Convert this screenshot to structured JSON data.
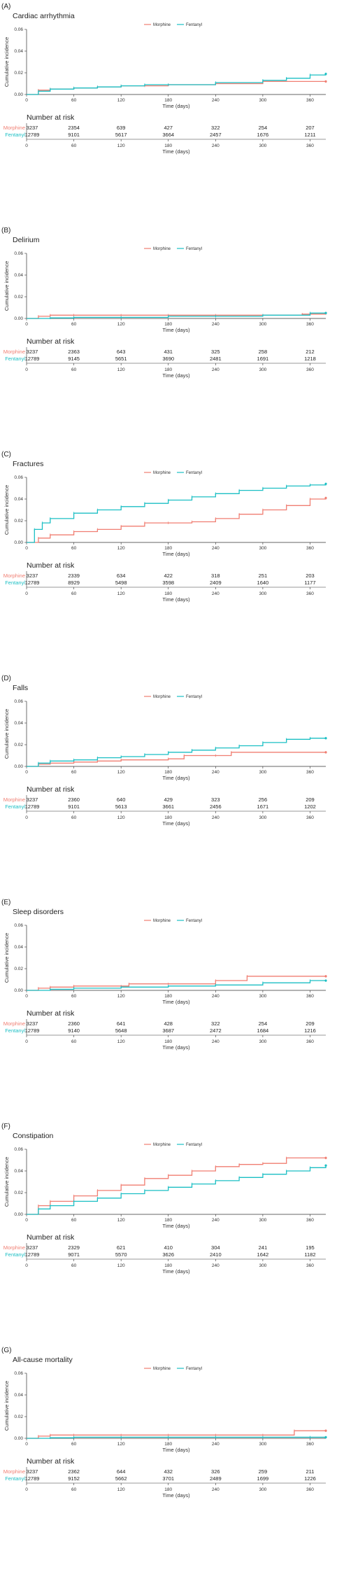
{
  "legend": {
    "morphine": "Morphine",
    "fentanyl": "Fentanyl"
  },
  "colors": {
    "morphine": "#f07e72",
    "fentanyl": "#1bbfc4"
  },
  "axis": {
    "xlabel": "Time (days)",
    "ylabel": "Cumulative incidence",
    "xticks": [
      "0",
      "60",
      "120",
      "180",
      "240",
      "300",
      "360"
    ],
    "yticks": [
      "0.00",
      "0.02",
      "0.04",
      "0.06"
    ]
  },
  "risk_table_title": "Number at risk",
  "chart_data": [
    {
      "type": "line",
      "panel_label": "(A)",
      "title": "Cardiac arrhythmia",
      "xlabel": "Time (days)",
      "ylabel": "Cumulative incidence",
      "xlim": [
        0,
        380
      ],
      "ylim": [
        0,
        0.06
      ],
      "series": [
        {
          "name": "Morphine",
          "x": [
            0,
            15,
            30,
            60,
            90,
            120,
            150,
            180,
            240,
            300,
            380
          ],
          "y": [
            0,
            0.004,
            0.005,
            0.006,
            0.007,
            0.008,
            0.008,
            0.009,
            0.01,
            0.012,
            0.012
          ]
        },
        {
          "name": "Fentanyl",
          "x": [
            0,
            15,
            30,
            60,
            90,
            120,
            150,
            180,
            240,
            300,
            330,
            360,
            380
          ],
          "y": [
            0,
            0.003,
            0.005,
            0.006,
            0.007,
            0.008,
            0.009,
            0.009,
            0.011,
            0.013,
            0.015,
            0.018,
            0.019
          ]
        }
      ],
      "risk": {
        "Morphine": [
          "3237",
          "2354",
          "639",
          "427",
          "322",
          "254",
          "207"
        ],
        "Fentanyl": [
          "12789",
          "9101",
          "5617",
          "3664",
          "2457",
          "1676",
          "1211"
        ]
      }
    },
    {
      "type": "line",
      "panel_label": "(B)",
      "title": "Delirium",
      "xlabel": "Time (days)",
      "ylabel": "Cumulative incidence",
      "xlim": [
        0,
        380
      ],
      "ylim": [
        0,
        0.06
      ],
      "series": [
        {
          "name": "Morphine",
          "x": [
            0,
            15,
            30,
            60,
            120,
            180,
            240,
            300,
            350,
            380
          ],
          "y": [
            0,
            0.002,
            0.003,
            0.003,
            0.003,
            0.003,
            0.003,
            0.003,
            0.004,
            0.005
          ]
        },
        {
          "name": "Fentanyl",
          "x": [
            0,
            30,
            60,
            120,
            180,
            240,
            300,
            360,
            380
          ],
          "y": [
            0,
            0.0005,
            0.001,
            0.001,
            0.002,
            0.002,
            0.003,
            0.005,
            0.005
          ]
        }
      ],
      "risk": {
        "Morphine": [
          "3237",
          "2363",
          "643",
          "431",
          "325",
          "258",
          "212"
        ],
        "Fentanyl": [
          "12789",
          "9145",
          "5651",
          "3690",
          "2481",
          "1691",
          "1218"
        ]
      }
    },
    {
      "type": "line",
      "panel_label": "(C)",
      "title": "Fractures",
      "xlabel": "Time (days)",
      "ylabel": "Cumulative incidence",
      "xlim": [
        0,
        380
      ],
      "ylim": [
        0,
        0.06
      ],
      "series": [
        {
          "name": "Morphine",
          "x": [
            0,
            15,
            30,
            60,
            90,
            120,
            150,
            180,
            210,
            240,
            270,
            300,
            330,
            360,
            380
          ],
          "y": [
            0,
            0.004,
            0.007,
            0.01,
            0.012,
            0.015,
            0.018,
            0.018,
            0.019,
            0.022,
            0.026,
            0.03,
            0.034,
            0.04,
            0.041
          ]
        },
        {
          "name": "Fentanyl",
          "x": [
            0,
            10,
            20,
            30,
            60,
            90,
            120,
            150,
            180,
            210,
            240,
            270,
            300,
            330,
            360,
            380
          ],
          "y": [
            0,
            0.012,
            0.018,
            0.022,
            0.027,
            0.03,
            0.033,
            0.036,
            0.039,
            0.042,
            0.045,
            0.048,
            0.05,
            0.052,
            0.053,
            0.054
          ]
        }
      ],
      "risk": {
        "Morphine": [
          "3237",
          "2339",
          "634",
          "422",
          "318",
          "251",
          "203"
        ],
        "Fentanyl": [
          "12789",
          "8929",
          "5498",
          "3598",
          "2409",
          "1640",
          "1177"
        ]
      }
    },
    {
      "type": "line",
      "panel_label": "(D)",
      "title": "Falls",
      "xlabel": "Time (days)",
      "ylabel": "Cumulative incidence",
      "xlim": [
        0,
        380
      ],
      "ylim": [
        0,
        0.06
      ],
      "series": [
        {
          "name": "Morphine",
          "x": [
            0,
            15,
            30,
            60,
            90,
            120,
            180,
            200,
            240,
            260,
            380
          ],
          "y": [
            0,
            0.002,
            0.003,
            0.004,
            0.005,
            0.006,
            0.007,
            0.01,
            0.01,
            0.013,
            0.013
          ]
        },
        {
          "name": "Fentanyl",
          "x": [
            0,
            15,
            30,
            60,
            90,
            120,
            150,
            180,
            210,
            240,
            270,
            300,
            330,
            360,
            380
          ],
          "y": [
            0,
            0.003,
            0.005,
            0.006,
            0.008,
            0.009,
            0.011,
            0.013,
            0.015,
            0.017,
            0.019,
            0.022,
            0.025,
            0.026,
            0.026
          ]
        }
      ],
      "risk": {
        "Morphine": [
          "3237",
          "2360",
          "640",
          "429",
          "323",
          "256",
          "209"
        ],
        "Fentanyl": [
          "12789",
          "9101",
          "5613",
          "3661",
          "2456",
          "1671",
          "1202"
        ]
      }
    },
    {
      "type": "line",
      "panel_label": "(E)",
      "title": "Sleep disorders",
      "xlabel": "Time (days)",
      "ylabel": "Cumulative incidence",
      "xlim": [
        0,
        380
      ],
      "ylim": [
        0,
        0.06
      ],
      "series": [
        {
          "name": "Morphine",
          "x": [
            0,
            15,
            30,
            60,
            120,
            130,
            180,
            240,
            280,
            380
          ],
          "y": [
            0,
            0.002,
            0.003,
            0.004,
            0.004,
            0.006,
            0.006,
            0.009,
            0.013,
            0.013
          ]
        },
        {
          "name": "Fentanyl",
          "x": [
            0,
            30,
            60,
            120,
            180,
            240,
            300,
            360,
            380
          ],
          "y": [
            0,
            0.001,
            0.002,
            0.003,
            0.004,
            0.005,
            0.007,
            0.009,
            0.009
          ]
        }
      ],
      "risk": {
        "Morphine": [
          "3237",
          "2360",
          "641",
          "428",
          "322",
          "254",
          "209"
        ],
        "Fentanyl": [
          "12789",
          "9140",
          "5648",
          "3687",
          "2472",
          "1684",
          "1216"
        ]
      }
    },
    {
      "type": "line",
      "panel_label": "(F)",
      "title": "Constipation",
      "xlabel": "Time (days)",
      "ylabel": "Cumulative incidence",
      "xlim": [
        0,
        380
      ],
      "ylim": [
        0,
        0.06
      ],
      "series": [
        {
          "name": "Morphine",
          "x": [
            0,
            15,
            30,
            60,
            90,
            120,
            150,
            180,
            210,
            240,
            270,
            300,
            330,
            380
          ],
          "y": [
            0,
            0.008,
            0.012,
            0.017,
            0.022,
            0.027,
            0.033,
            0.036,
            0.04,
            0.044,
            0.046,
            0.047,
            0.052,
            0.052
          ]
        },
        {
          "name": "Fentanyl",
          "x": [
            0,
            15,
            30,
            60,
            90,
            120,
            150,
            180,
            210,
            240,
            270,
            300,
            330,
            360,
            380
          ],
          "y": [
            0,
            0.005,
            0.008,
            0.012,
            0.015,
            0.019,
            0.022,
            0.025,
            0.028,
            0.031,
            0.034,
            0.037,
            0.04,
            0.043,
            0.045
          ]
        }
      ],
      "risk": {
        "Morphine": [
          "3237",
          "2329",
          "621",
          "410",
          "304",
          "241",
          "195"
        ],
        "Fentanyl": [
          "12789",
          "9071",
          "5570",
          "3626",
          "2410",
          "1642",
          "1182"
        ]
      }
    },
    {
      "type": "line",
      "panel_label": "(G)",
      "title": "All-cause mortality",
      "xlabel": "Time (days)",
      "ylabel": "Cumulative incidence",
      "xlim": [
        0,
        380
      ],
      "ylim": [
        0,
        0.06
      ],
      "series": [
        {
          "name": "Morphine",
          "x": [
            0,
            15,
            30,
            60,
            120,
            180,
            240,
            300,
            340,
            380
          ],
          "y": [
            0,
            0.002,
            0.003,
            0.003,
            0.003,
            0.003,
            0.003,
            0.003,
            0.007,
            0.007
          ]
        },
        {
          "name": "Fentanyl",
          "x": [
            0,
            30,
            60,
            120,
            180,
            240,
            300,
            360,
            380
          ],
          "y": [
            0,
            0.0005,
            0.001,
            0.001,
            0.001,
            0.001,
            0.001,
            0.001,
            0.001
          ]
        }
      ],
      "risk": {
        "Morphine": [
          "3237",
          "2362",
          "644",
          "432",
          "326",
          "259",
          "211"
        ],
        "Fentanyl": [
          "12789",
          "9152",
          "5662",
          "3701",
          "2489",
          "1699",
          "1226"
        ]
      }
    }
  ]
}
